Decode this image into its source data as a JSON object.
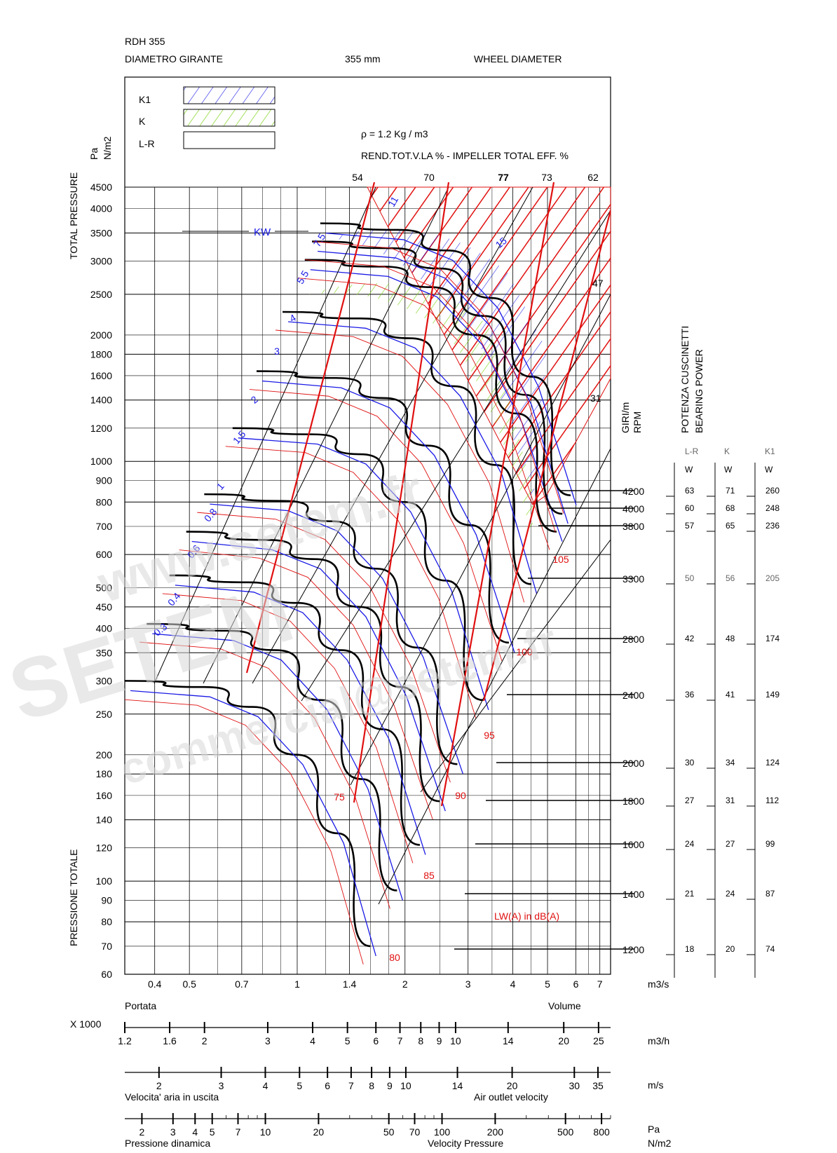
{
  "header": {
    "model": "RDH 355",
    "diam_it": "DIAMETRO GIRANTE",
    "diam_val": "355 mm",
    "diam_en": "WHEEL DIAMETER"
  },
  "legend": {
    "items": [
      {
        "label": "K1",
        "pattern": "blue-hatch",
        "color": "#1a1ae6"
      },
      {
        "label": "K",
        "pattern": "green-hatch",
        "color": "#7fd31a"
      },
      {
        "label": "L-R",
        "pattern": "blank",
        "color": "#000000"
      }
    ]
  },
  "density": "ρ = 1.2 Kg / m3",
  "efficiency": {
    "title": "REND.TOT.V.LA % - IMPELLER TOTAL EFF. %",
    "values": [
      "54",
      "70",
      "77",
      "73",
      "62"
    ]
  },
  "y_axis": {
    "unit_top": "Pa",
    "unit_bottom": "N/m2",
    "label_top": "TOTAL PRESSURE",
    "label_bottom": "PRESSIONE TOTALE",
    "ticks": [
      "4500",
      "4000",
      "3500",
      "3000",
      "2500",
      "2000",
      "1800",
      "1600",
      "1400",
      "1200",
      "1000",
      "900",
      "800",
      "700",
      "600",
      "500",
      "450",
      "400",
      "350",
      "300",
      "250",
      "200",
      "180",
      "160",
      "140",
      "120",
      "100",
      "90",
      "80",
      "70",
      "60"
    ]
  },
  "x_axis_m3s": {
    "ticks": [
      "0.4",
      "0.5",
      "0.7",
      "1",
      "1.4",
      "2",
      "3",
      "4",
      "5",
      "6",
      "7"
    ],
    "unit": "m3/s",
    "label_it": "Portata",
    "label_en": "Volume"
  },
  "scale_m3h": {
    "multiplier": "X 1000",
    "ticks": [
      "1.2",
      "1.6",
      "2",
      "3",
      "4",
      "5",
      "6",
      "7",
      "8",
      "9",
      "10",
      "14",
      "20",
      "25"
    ],
    "unit": "m3/h"
  },
  "scale_velocity": {
    "ticks": [
      "2",
      "3",
      "4",
      "5",
      "6",
      "7",
      "8",
      "9",
      "10",
      "14",
      "20",
      "30",
      "35"
    ],
    "unit": "m/s",
    "label_it": "Velocita' aria in uscita",
    "label_en": "Air outlet velocity"
  },
  "scale_dynamic": {
    "ticks": [
      "2",
      "3",
      "4",
      "5",
      "7",
      "10",
      "20",
      "50",
      "70",
      "100",
      "200",
      "500",
      "800"
    ],
    "unit_top": "Pa",
    "unit_bottom": "N/m2",
    "label_it": "Pressione dinamica",
    "label_en": "Velocity Pressure"
  },
  "rpm": {
    "label_it": "GIRI/m",
    "label_en": "RPM",
    "values": [
      "4200",
      "4000",
      "3800",
      "3300",
      "2800",
      "2400",
      "2000",
      "1800",
      "1600",
      "1400",
      "1200"
    ]
  },
  "bearing": {
    "title_it": "POTENZA CUSCINETTI",
    "title_en": "BEARING POWER",
    "columns": [
      "L-R",
      "K",
      "K1"
    ],
    "units": [
      "W",
      "W",
      "W"
    ],
    "rows": [
      [
        "63",
        "71",
        "260"
      ],
      [
        "60",
        "68",
        "248"
      ],
      [
        "57",
        "65",
        "236"
      ],
      [
        "50",
        "56",
        "205"
      ],
      [
        "42",
        "48",
        "174"
      ],
      [
        "36",
        "41",
        "149"
      ],
      [
        "30",
        "34",
        "124"
      ],
      [
        "27",
        "31",
        "112"
      ],
      [
        "24",
        "27",
        "99"
      ],
      [
        "21",
        "24",
        "87"
      ],
      [
        "18",
        "20",
        "74"
      ]
    ]
  },
  "kw": {
    "label": "KW",
    "values": [
      "11",
      "15",
      "7.5",
      "5.5",
      "4",
      "3",
      "2",
      "1.5",
      "1",
      "0.8",
      "0.6",
      "0.4",
      "0.3"
    ]
  },
  "noise": {
    "label": "LW(A) in dB(A)",
    "values": [
      "75",
      "80",
      "85",
      "90",
      "95",
      "100",
      "105"
    ]
  },
  "right_labels": [
    "47",
    "31"
  ],
  "watermark": [
    "www.setem.fr",
    "SETEM",
    "commercial@setem.fr"
  ],
  "chart_data": {
    "type": "line",
    "title": "RDH 355",
    "xlabel": "Volume (m3/s)",
    "ylabel": "Total pressure (Pa)",
    "x_scale": "log",
    "y_scale": "log",
    "xlim": [
      0.33,
      7.5
    ],
    "ylim": [
      60,
      4500
    ],
    "series": [
      {
        "name": "1200",
        "x": [
          0.33,
          0.55,
          0.75,
          1.0,
          1.3,
          1.6
        ],
        "y": [
          300,
          290,
          260,
          200,
          130,
          70
        ]
      },
      {
        "name": "1400",
        "x": [
          0.38,
          0.64,
          0.87,
          1.17,
          1.52,
          1.9
        ],
        "y": [
          410,
          395,
          355,
          270,
          175,
          95
        ]
      },
      {
        "name": "1600",
        "x": [
          0.44,
          0.73,
          1.0,
          1.33,
          1.74,
          2.2
        ],
        "y": [
          535,
          515,
          460,
          355,
          230,
          122
        ]
      },
      {
        "name": "1800",
        "x": [
          0.49,
          0.82,
          1.12,
          1.5,
          1.95,
          2.5
        ],
        "y": [
          680,
          650,
          585,
          450,
          290,
          155
        ]
      },
      {
        "name": "2000",
        "x": [
          0.55,
          0.91,
          1.25,
          1.67,
          2.17,
          2.8
        ],
        "y": [
          835,
          805,
          720,
          555,
          360,
          190
        ]
      },
      {
        "name": "2400",
        "x": [
          0.66,
          1.1,
          1.5,
          2.0,
          2.6,
          3.3
        ],
        "y": [
          1200,
          1160,
          1040,
          800,
          520,
          270
        ]
      },
      {
        "name": "2800",
        "x": [
          0.77,
          1.28,
          1.75,
          2.33,
          3.05,
          3.9
        ],
        "y": [
          1640,
          1580,
          1415,
          1090,
          705,
          370
        ]
      },
      {
        "name": "3300",
        "x": [
          0.91,
          1.5,
          2.06,
          2.75,
          3.6,
          4.5
        ],
        "y": [
          2270,
          2190,
          1965,
          1510,
          980,
          510
        ]
      },
      {
        "name": "3800",
        "x": [
          1.05,
          1.73,
          2.37,
          3.17,
          4.1,
          5.3
        ],
        "y": [
          3020,
          2910,
          2600,
          2000,
          1300,
          680
        ]
      },
      {
        "name": "4000",
        "x": [
          1.1,
          1.82,
          2.5,
          3.33,
          4.35,
          5.5
        ],
        "y": [
          3340,
          3220,
          2880,
          2220,
          1440,
          750
        ]
      },
      {
        "name": "4200",
        "x": [
          1.16,
          1.91,
          2.62,
          3.5,
          4.55,
          5.8
        ],
        "y": [
          3690,
          3560,
          3180,
          2450,
          1590,
          830
        ]
      }
    ]
  }
}
